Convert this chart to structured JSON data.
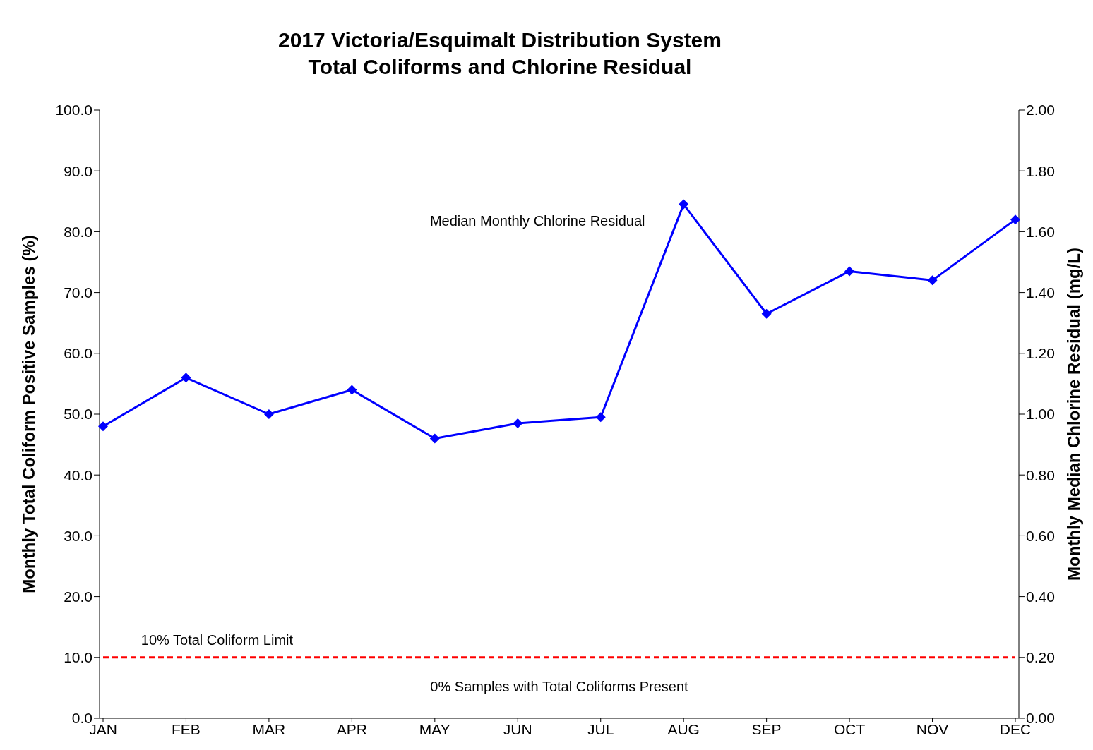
{
  "chart_data": {
    "type": "line",
    "title": "2017 Victoria/Esquimalt Distribution System\nTotal Coliforms and Chlorine Residual",
    "categories": [
      "JAN",
      "FEB",
      "MAR",
      "APR",
      "MAY",
      "JUN",
      "JUL",
      "AUG",
      "SEP",
      "OCT",
      "NOV",
      "DEC"
    ],
    "series": [
      {
        "name": "Median Monthly Chlorine Residual",
        "color": "#0000ff",
        "axis": "y2",
        "marker": "diamond",
        "line_style": "solid",
        "values": [
          0.96,
          1.12,
          1.0,
          1.08,
          0.92,
          0.97,
          0.99,
          1.69,
          1.33,
          1.47,
          1.44,
          1.64
        ]
      }
    ],
    "ylabel": "Monthly Total Coliform Positive Samples (%)",
    "y2label": "Monthly Median Chlorine Residual (mg/L)",
    "ylim": [
      0,
      100
    ],
    "yticks": [
      {
        "value": 0,
        "label": "0.0"
      },
      {
        "value": 10,
        "label": "10.0"
      },
      {
        "value": 20,
        "label": "20.0"
      },
      {
        "value": 30,
        "label": "30.0"
      },
      {
        "value": 40,
        "label": "40.0"
      },
      {
        "value": 50,
        "label": "50.0"
      },
      {
        "value": 60,
        "label": "60.0"
      },
      {
        "value": 70,
        "label": "70.0"
      },
      {
        "value": 80,
        "label": "80.0"
      },
      {
        "value": 90,
        "label": "90.0"
      },
      {
        "value": 100,
        "label": "100.0"
      }
    ],
    "y2lim": [
      0,
      2
    ],
    "y2ticks": [
      {
        "value": 0,
        "label": "0.00"
      },
      {
        "value": 0.2,
        "label": "0.20"
      },
      {
        "value": 0.4,
        "label": "0.40"
      },
      {
        "value": 0.6,
        "label": "0.60"
      },
      {
        "value": 0.8,
        "label": "0.80"
      },
      {
        "value": 1,
        "label": "1.00"
      },
      {
        "value": 1.2,
        "label": "1.20"
      },
      {
        "value": 1.4,
        "label": "1.40"
      },
      {
        "value": 1.6,
        "label": "1.60"
      },
      {
        "value": 1.8,
        "label": "1.80"
      },
      {
        "value": 2,
        "label": "2.00"
      }
    ],
    "ref_lines": [
      {
        "axis": "y",
        "value": 10,
        "label": "10% Total Coliform Limit",
        "color": "#ff0000",
        "line_style": "dashed"
      }
    ],
    "annotations": [
      "0% Samples with Total Coliforms Present"
    ],
    "legend": false
  }
}
